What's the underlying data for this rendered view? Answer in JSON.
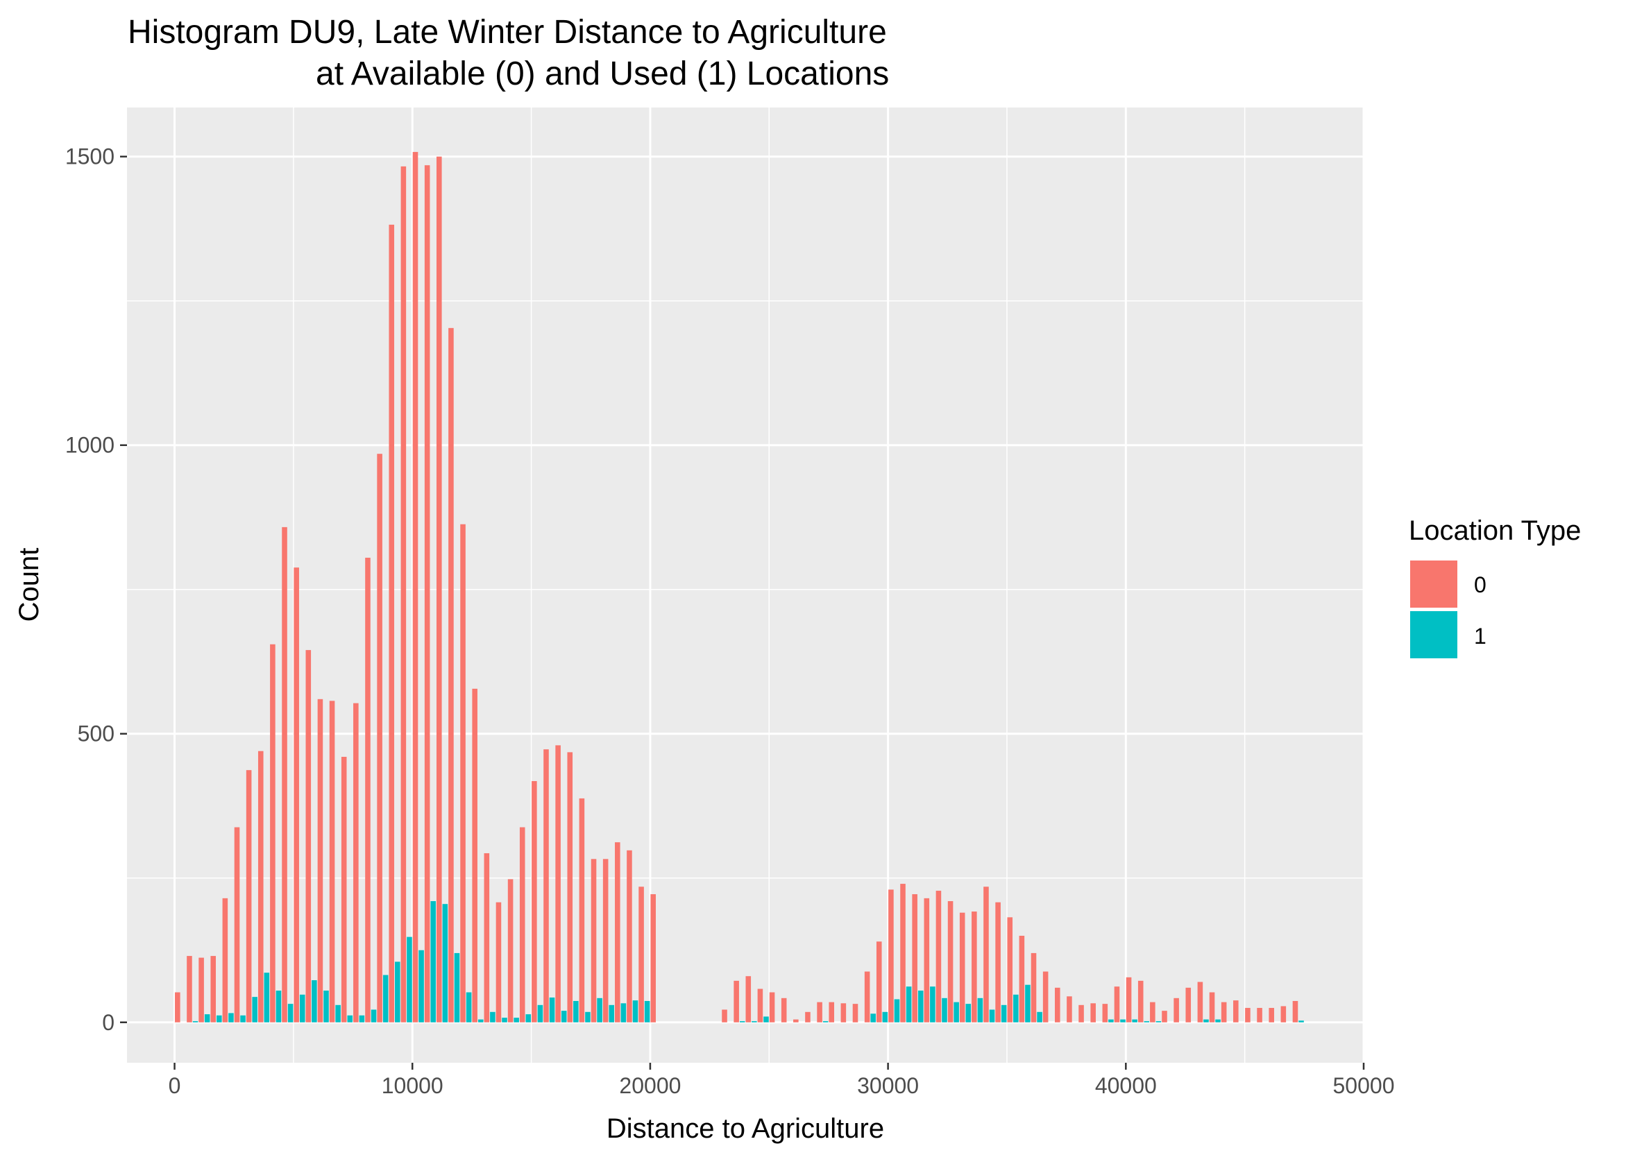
{
  "chart_data": {
    "type": "bar",
    "title_line1": "Histogram DU9, Late Winter Distance to Agriculture",
    "title_line2": "at Available (0) and Used (1) Locations",
    "xlabel": "Distance to Agriculture",
    "ylabel": "Count",
    "xlim": [
      -2000,
      50000
    ],
    "ylim": [
      -70,
      1585
    ],
    "x_ticks": [
      0,
      10000,
      20000,
      30000,
      40000,
      50000
    ],
    "x_tick_labels": [
      "0",
      "10000",
      "20000",
      "30000",
      "40000",
      "50000"
    ],
    "y_ticks": [
      0,
      500,
      1000,
      1500
    ],
    "y_tick_labels": [
      "0",
      "500",
      "1000",
      "1500"
    ],
    "bin_width": 500,
    "grid": true,
    "background": "#ebebeb",
    "legend": {
      "title": "Location Type",
      "position": "right",
      "entries": [
        {
          "label": "0",
          "color": "#f8766d"
        },
        {
          "label": "1",
          "color": "#00bfc4"
        }
      ]
    },
    "series": [
      {
        "name": "0",
        "color": "#f8766d",
        "x": [
          250,
          750,
          1250,
          1750,
          2250,
          2750,
          3250,
          3750,
          4250,
          4750,
          5250,
          5750,
          6250,
          6750,
          7250,
          7750,
          8250,
          8750,
          9250,
          9750,
          10250,
          10750,
          11250,
          11750,
          12250,
          12750,
          13250,
          13750,
          14250,
          14750,
          15250,
          15750,
          16250,
          16750,
          17250,
          17750,
          18250,
          18750,
          19250,
          19750,
          20250,
          23250,
          23750,
          24250,
          24750,
          25250,
          25750,
          26250,
          26750,
          27250,
          27750,
          28250,
          28750,
          29250,
          29750,
          30250,
          30750,
          31250,
          31750,
          32250,
          32750,
          33250,
          33750,
          34250,
          34750,
          35250,
          35750,
          36250,
          36750,
          37250,
          37750,
          38250,
          38750,
          39250,
          39750,
          40250,
          40750,
          41250,
          41750,
          42250,
          42750,
          43250,
          43750,
          44250,
          44750,
          45250,
          45750,
          46250,
          46750,
          47250
        ],
        "values": [
          52,
          115,
          112,
          115,
          215,
          338,
          437,
          470,
          655,
          858,
          788,
          645,
          560,
          557,
          460,
          553,
          805,
          985,
          1382,
          1483,
          1508,
          1485,
          1500,
          1203,
          863,
          578,
          293,
          208,
          248,
          338,
          418,
          473,
          480,
          468,
          388,
          283,
          283,
          312,
          298,
          235,
          222,
          22,
          72,
          80,
          58,
          52,
          42,
          5,
          18,
          35,
          35,
          33,
          32,
          88,
          140,
          230,
          240,
          222,
          215,
          228,
          210,
          190,
          192,
          235,
          208,
          182,
          150,
          120,
          88,
          60,
          45,
          30,
          33,
          32,
          62,
          78,
          72,
          35,
          20,
          42,
          60,
          70,
          52,
          35,
          38,
          25,
          25,
          25,
          28,
          37
        ]
      },
      {
        "name": "1",
        "color": "#00bfc4",
        "x": [
          250,
          750,
          1250,
          1750,
          2250,
          2750,
          3250,
          3750,
          4250,
          4750,
          5250,
          5750,
          6250,
          6750,
          7250,
          7750,
          8250,
          8750,
          9250,
          9750,
          10250,
          10750,
          11250,
          11750,
          12250,
          12750,
          13250,
          13750,
          14250,
          14750,
          15250,
          15750,
          16250,
          16750,
          17250,
          17750,
          18250,
          18750,
          19250,
          19750,
          20250,
          23250,
          23750,
          24250,
          24750,
          25250,
          25750,
          26250,
          26750,
          27250,
          27750,
          28250,
          28750,
          29250,
          29750,
          30250,
          30750,
          31250,
          31750,
          32250,
          32750,
          33250,
          33750,
          34250,
          34750,
          35250,
          35750,
          36250,
          36750,
          37250,
          37750,
          38250,
          38750,
          39250,
          39750,
          40250,
          40750,
          41250,
          41750,
          42250,
          42750,
          43250,
          43750,
          44250,
          44750,
          45250,
          45750,
          46250,
          46750,
          47250
        ],
        "values": [
          0,
          2,
          14,
          12,
          16,
          12,
          44,
          86,
          55,
          32,
          48,
          73,
          55,
          30,
          12,
          12,
          22,
          82,
          105,
          148,
          125,
          210,
          205,
          120,
          52,
          5,
          18,
          8,
          8,
          14,
          30,
          43,
          20,
          37,
          18,
          42,
          30,
          33,
          38,
          37,
          0,
          0,
          2,
          2,
          10,
          0,
          0,
          0,
          0,
          2,
          0,
          0,
          0,
          15,
          18,
          40,
          62,
          55,
          62,
          42,
          35,
          32,
          42,
          22,
          30,
          48,
          65,
          18,
          0,
          0,
          0,
          0,
          0,
          5,
          5,
          5,
          2,
          2,
          0,
          0,
          0,
          5,
          5,
          0,
          0,
          0,
          0,
          0,
          0,
          3
        ]
      }
    ]
  }
}
